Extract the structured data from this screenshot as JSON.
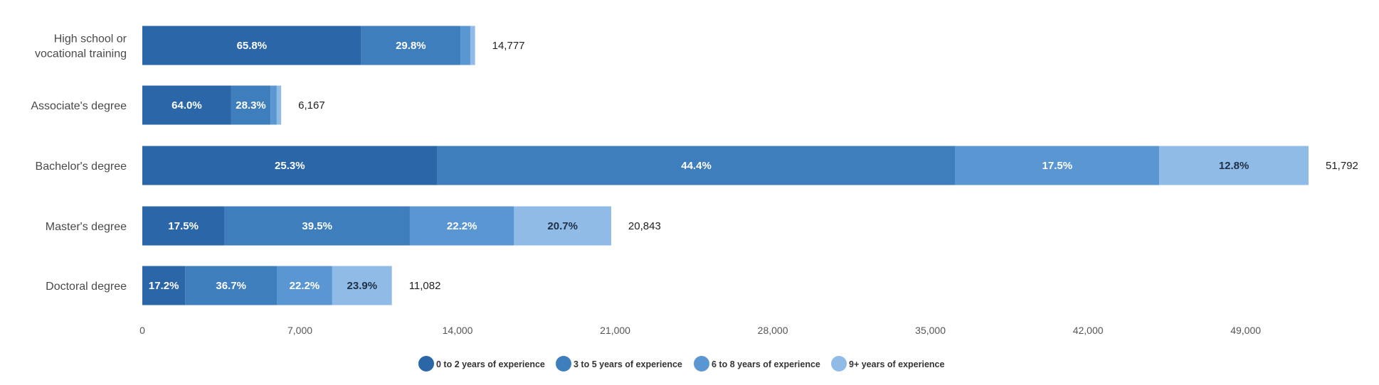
{
  "chart_data": {
    "type": "bar",
    "orientation": "horizontal",
    "stacked": true,
    "categories": [
      [
        "High school or",
        "vocational training"
      ],
      [
        "Associate's degree"
      ],
      [
        "Bachelor's degree"
      ],
      [
        "Master's degree"
      ],
      [
        "Doctoral degree"
      ]
    ],
    "totals": [
      14777,
      6167,
      51792,
      20843,
      11082
    ],
    "total_labels": [
      "14,777",
      "6,167",
      "51,792",
      "20,843",
      "11,082"
    ],
    "series": [
      {
        "name": "0 to 2 years of experience",
        "color": "#2a66a8",
        "label_color": "#ffffff",
        "percent": [
          65.8,
          64.0,
          25.3,
          17.5,
          17.2
        ],
        "labels": [
          "65.8%",
          "64.0%",
          "25.3%",
          "17.5%",
          "17.2%"
        ]
      },
      {
        "name": "3 to 5 years of experience",
        "color": "#3f7ebd",
        "label_color": "#ffffff",
        "percent": [
          29.8,
          28.3,
          44.4,
          39.5,
          36.7
        ],
        "labels": [
          "29.8%",
          "28.3%",
          "44.4%",
          "39.5%",
          "36.7%"
        ]
      },
      {
        "name": "6 to 8 years of experience",
        "color": "#5a97d2",
        "label_color": "#ffffff",
        "percent": [
          3.0,
          4.5,
          17.5,
          22.2,
          22.2
        ],
        "labels": [
          "",
          "",
          "17.5%",
          "22.2%",
          "22.2%"
        ]
      },
      {
        "name": "9+ years of experience",
        "color": "#8fbbe6",
        "label_color": "#1f2f45",
        "percent": [
          1.4,
          3.2,
          12.8,
          20.7,
          23.9
        ],
        "labels": [
          "",
          "",
          "12.8%",
          "20.7%",
          "23.9%"
        ]
      }
    ],
    "xlim": [
      0,
      51792
    ],
    "xticks": [
      0,
      7000,
      14000,
      21000,
      28000,
      35000,
      42000,
      49000
    ],
    "xtick_labels": [
      "0",
      "7,000",
      "14,000",
      "21,000",
      "28,000",
      "35,000",
      "42,000",
      "49,000"
    ],
    "grid": false,
    "legend": "bottom"
  }
}
